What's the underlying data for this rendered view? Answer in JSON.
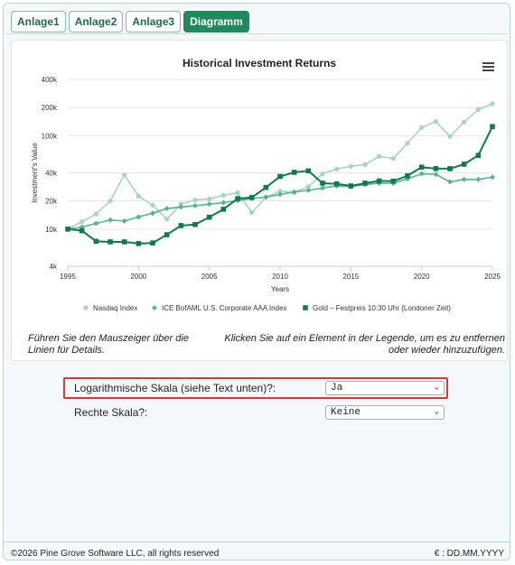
{
  "tabs": [
    {
      "label": "Anlage1",
      "active": false
    },
    {
      "label": "Anlage2",
      "active": false
    },
    {
      "label": "Anlage3",
      "active": false
    },
    {
      "label": "Diagramm",
      "active": true
    }
  ],
  "hints": {
    "left": "Führen Sie den Mauszeiger über die Linien für Details.",
    "right": "Klicken Sie auf ein Element in der Legende, um es zu entfernen oder wieder hinzuzufügen."
  },
  "settings": {
    "log_label": "Logarithmische Skala (siehe Text unten)?:",
    "log_value": "Ja",
    "right_label": "Rechte Skala?:",
    "right_value": "Keine"
  },
  "footer": {
    "copyright": "©2026 Pine Grove Software LLC, all rights reserved",
    "date_format": "€ : DD.MM.YYYY"
  },
  "colors": {
    "accent": "#1f8a5b",
    "highlight": "#d63a36"
  },
  "chart_data": {
    "type": "line",
    "title": "Historical Investment Returns",
    "xlabel": "Years",
    "ylabel": "Investment's Value",
    "yscale": "log",
    "ylim": [
      4000,
      400000
    ],
    "xlim": [
      1995,
      2025
    ],
    "xticks": [
      1995,
      2000,
      2005,
      2010,
      2015,
      2020,
      2025
    ],
    "yticks": [
      4000,
      10000,
      20000,
      40000,
      100000,
      200000,
      400000
    ],
    "ytick_labels": [
      "4k",
      "10k",
      "20k",
      "40k",
      "100k",
      "200k",
      "400k"
    ],
    "legend_position": "bottom",
    "series": [
      {
        "name": "Nasdaq Index",
        "color": "#a6d5bc",
        "marker": "circle",
        "x": [
          1995,
          1996,
          1997,
          1998,
          1999,
          2000,
          2001,
          2002,
          2003,
          2004,
          2005,
          2006,
          2007,
          2008,
          2009,
          2010,
          2011,
          2012,
          2013,
          2014,
          2015,
          2016,
          2017,
          2018,
          2019,
          2020,
          2021,
          2022,
          2023,
          2024,
          2025
        ],
        "y": [
          10000,
          12000,
          14500,
          20000,
          38000,
          22500,
          18000,
          12800,
          18500,
          20500,
          21000,
          23000,
          24500,
          15000,
          22000,
          25500,
          24500,
          28500,
          39000,
          44000,
          47000,
          49000,
          60000,
          57000,
          83000,
          122000,
          142000,
          98000,
          140000,
          190000,
          220000
        ]
      },
      {
        "name": "ICE BofAML U.S. Corporate AAA Index",
        "color": "#52b788",
        "marker": "diamond",
        "x": [
          1995,
          1996,
          1997,
          1998,
          1999,
          2000,
          2001,
          2002,
          2003,
          2004,
          2005,
          2006,
          2007,
          2008,
          2009,
          2010,
          2011,
          2012,
          2013,
          2014,
          2015,
          2016,
          2017,
          2018,
          2019,
          2020,
          2021,
          2022,
          2023,
          2024,
          2025
        ],
        "y": [
          10000,
          10500,
          11500,
          12500,
          12200,
          13500,
          14800,
          16600,
          17200,
          17800,
          18500,
          19200,
          20200,
          21200,
          22000,
          23500,
          25000,
          26000,
          27500,
          29000,
          28500,
          30000,
          31000,
          31000,
          34500,
          39000,
          38500,
          32000,
          34000,
          34000,
          36000
        ]
      },
      {
        "name": "Gold – Festpreis 10:30 Uhr (Londoner Zeit)",
        "color": "#0f7a4a",
        "marker": "square",
        "x": [
          1995,
          1996,
          1997,
          1998,
          1999,
          2000,
          2001,
          2002,
          2003,
          2004,
          2005,
          2006,
          2007,
          2008,
          2009,
          2010,
          2011,
          2012,
          2013,
          2014,
          2015,
          2016,
          2017,
          2018,
          2019,
          2020,
          2021,
          2022,
          2023,
          2024,
          2025
        ],
        "y": [
          10000,
          9600,
          7400,
          7300,
          7300,
          7000,
          7100,
          8700,
          10900,
          11200,
          13400,
          16300,
          21200,
          21800,
          27900,
          36600,
          40500,
          42000,
          31000,
          30500,
          29000,
          31000,
          32800,
          32600,
          37200,
          46000,
          44400,
          44300,
          49500,
          61500,
          125000
        ]
      }
    ]
  }
}
